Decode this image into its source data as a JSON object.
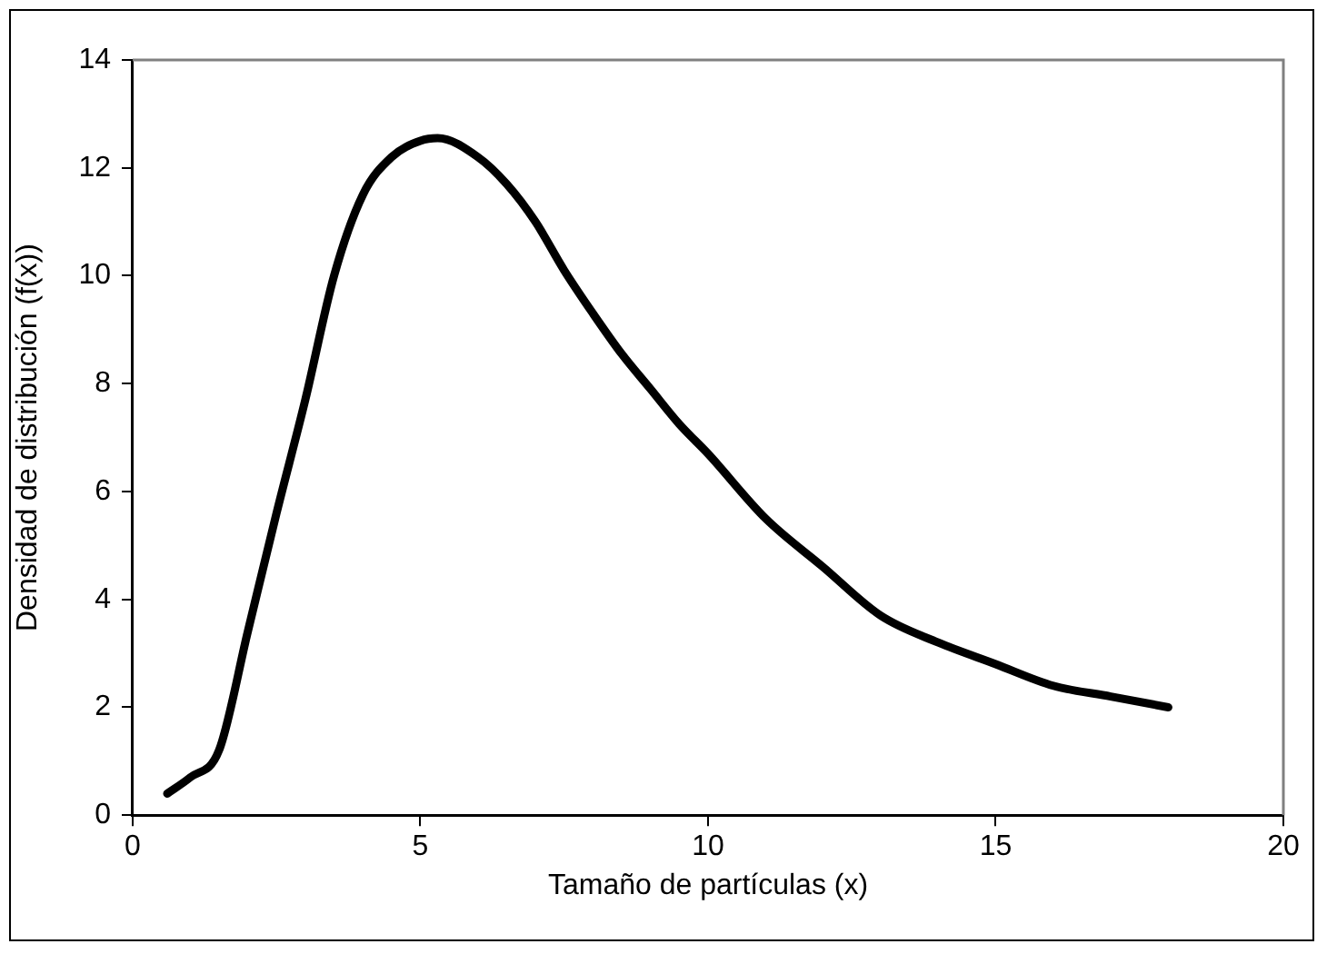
{
  "chart_data": {
    "type": "line",
    "xlabel": "Tamaño de partículas (x)",
    "ylabel": "Densidad de distribución (f(x))",
    "series": [
      {
        "color": "#000000",
        "x": [
          0.6,
          1,
          1.5,
          2,
          2.5,
          3,
          3.5,
          4,
          4.5,
          5,
          5.3,
          6,
          6.5,
          7,
          7.5,
          8,
          8.5,
          9,
          9.5,
          10,
          11,
          12,
          13,
          14,
          15,
          16,
          17,
          18
        ],
        "values": [
          0.4,
          0.7,
          1.2,
          3.4,
          5.6,
          7.7,
          10,
          11.5,
          12.2,
          12.5,
          12.55,
          12.2,
          11.7,
          11,
          10.1,
          9.3,
          8.55,
          7.9,
          7.25,
          6.7,
          5.5,
          4.6,
          3.7,
          3.2,
          2.8,
          2.4,
          2.2,
          2.0
        ]
      }
    ],
    "xlim": [
      0,
      20
    ],
    "xticks": [
      0,
      5,
      10,
      15,
      20
    ],
    "ylim": [
      0,
      14
    ],
    "yticks": [
      0,
      2,
      4,
      6,
      8,
      10,
      12,
      14
    ],
    "grid": false,
    "legend": false,
    "marker": "none",
    "line_style": "solid"
  }
}
